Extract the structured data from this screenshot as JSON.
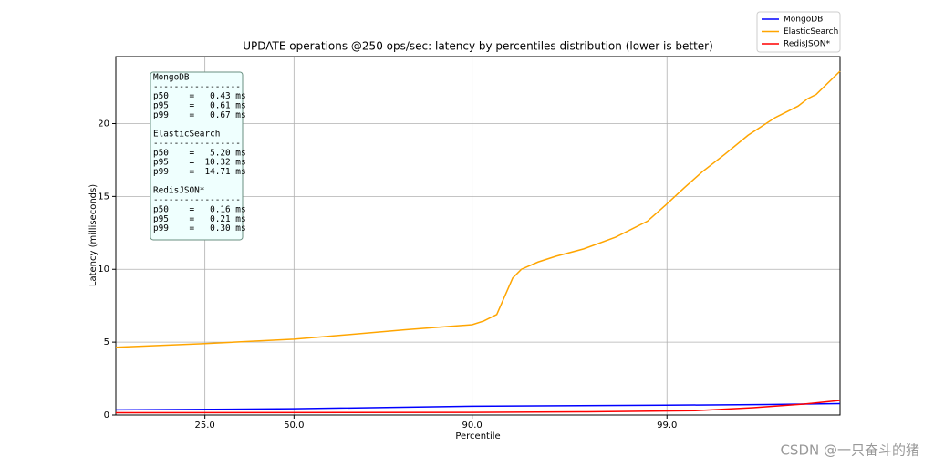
{
  "chart_data": {
    "type": "line",
    "title": "UPDATE operations @250 ops/sec: latency by percentiles distribution (lower is better)",
    "xlabel": "Percentile",
    "ylabel": "Latency (milliseconds)",
    "xlim": [
      0,
      100
    ],
    "ylim": [
      0,
      24.6
    ],
    "xticks": [
      {
        "value": 12.3,
        "label": "25.0"
      },
      {
        "value": 24.6,
        "label": "50.0"
      },
      {
        "value": 49.2,
        "label": "90.0"
      },
      {
        "value": 76.1,
        "label": "99.0"
      }
    ],
    "yticks": [
      0,
      5,
      10,
      15,
      20
    ],
    "grid": true,
    "legend": "upper right",
    "series": [
      {
        "name": "MongoDB",
        "color": "#0000ff",
        "x": [
          0,
          24.6,
          49.2,
          75.9,
          90,
          100
        ],
        "values": [
          0.35,
          0.43,
          0.6,
          0.67,
          0.72,
          0.78
        ]
      },
      {
        "name": "ElasticSearch",
        "color": "#ffa500",
        "x": [
          0,
          12.3,
          24.6,
          40.0,
          49.2,
          50.8,
          52.6,
          54.8,
          56,
          58.3,
          60.8,
          64.6,
          69,
          73.4,
          75.9,
          78.5,
          81,
          84.1,
          87.3,
          91,
          94.2,
          95.5,
          96.7,
          100
        ],
        "values": [
          4.65,
          4.9,
          5.2,
          5.85,
          6.2,
          6.45,
          6.9,
          9.4,
          10.0,
          10.5,
          10.9,
          11.4,
          12.2,
          13.3,
          14.4,
          15.6,
          16.7,
          17.9,
          19.2,
          20.4,
          21.2,
          21.7,
          22.0,
          23.6
        ]
      },
      {
        "name": "RedisJSON*",
        "color": "#ff0000",
        "x": [
          0,
          49.2,
          65,
          80,
          88,
          95,
          100
        ],
        "values": [
          0.16,
          0.18,
          0.22,
          0.3,
          0.5,
          0.75,
          1.0
        ]
      }
    ],
    "annotation": [
      {
        "name": "MongoDB",
        "rule": "-----------------",
        "lines": [
          "p50    =   0.43 ms",
          "p95    =   0.61 ms",
          "p99    =   0.67 ms"
        ]
      },
      {
        "name": "ElasticSearch",
        "rule": "-----------------",
        "lines": [
          "p50    =   5.20 ms",
          "p95    =  10.32 ms",
          "p99    =  14.71 ms"
        ]
      },
      {
        "name": "RedisJSON*",
        "rule": "-----------------",
        "lines": [
          "p50    =   0.16 ms",
          "p95    =   0.21 ms",
          "p99    =   0.30 ms"
        ]
      }
    ],
    "watermark": "CSDN @一只奋斗的猪"
  }
}
